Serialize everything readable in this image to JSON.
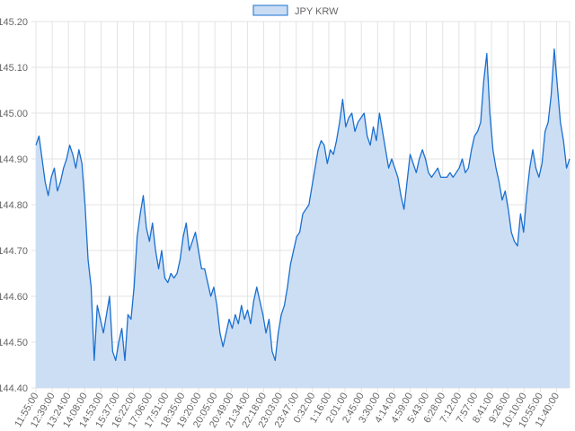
{
  "chart_data": {
    "type": "area",
    "legend": {
      "position": "top",
      "label": "JPY KRW"
    },
    "colors": {
      "line": "#1a6fd0",
      "fill": "#c9dcf3",
      "grid": "#e3e3e3",
      "axis_text": "#666666"
    },
    "grid": true,
    "ylim": [
      144.4,
      145.2
    ],
    "y_ticks": [
      "145.20",
      "145.10",
      "145.00",
      "144.90",
      "144.80",
      "144.70",
      "144.60",
      "144.50",
      "144.40"
    ],
    "x_ticks": [
      "11:55:00",
      "12:39:00",
      "13:24:00",
      "14:08:00",
      "14:53:00",
      "15:37:00",
      "16:22:00",
      "17:06:00",
      "17:51:00",
      "18:35:00",
      "19:20:00",
      "20:05:00",
      "20:49:00",
      "21:34:00",
      "22:18:00",
      "23:03:00",
      "23:47:00",
      "0:32:00",
      "1:16:00",
      "2:01:00",
      "2:45:00",
      "3:30:00",
      "4:14:00",
      "4:59:00",
      "5:43:00",
      "6:28:00",
      "7:12:00",
      "7:57:00",
      "8:41:00",
      "9:26:00",
      "10:10:00",
      "10:55:00",
      "11:40:00"
    ],
    "series": [
      {
        "name": "JPY KRW",
        "values": [
          144.93,
          144.95,
          144.9,
          144.85,
          144.82,
          144.86,
          144.88,
          144.83,
          144.85,
          144.88,
          144.9,
          144.93,
          144.91,
          144.88,
          144.92,
          144.89,
          144.8,
          144.68,
          144.62,
          144.46,
          144.58,
          144.55,
          144.52,
          144.56,
          144.6,
          144.48,
          144.46,
          144.5,
          144.53,
          144.46,
          144.56,
          144.55,
          144.62,
          144.73,
          144.78,
          144.82,
          144.75,
          144.72,
          144.76,
          144.7,
          144.66,
          144.7,
          144.64,
          144.63,
          144.65,
          144.64,
          144.65,
          144.68,
          144.73,
          144.76,
          144.7,
          144.72,
          144.74,
          144.7,
          144.66,
          144.66,
          144.63,
          144.6,
          144.62,
          144.58,
          144.52,
          144.49,
          144.52,
          144.55,
          144.53,
          144.56,
          144.54,
          144.58,
          144.55,
          144.57,
          144.54,
          144.59,
          144.62,
          144.59,
          144.56,
          144.52,
          144.55,
          144.48,
          144.46,
          144.52,
          144.56,
          144.58,
          144.62,
          144.67,
          144.7,
          144.73,
          144.74,
          144.78,
          144.79,
          144.8,
          144.84,
          144.88,
          144.92,
          144.94,
          144.93,
          144.89,
          144.92,
          144.91,
          144.94,
          144.98,
          145.03,
          144.97,
          144.99,
          145.0,
          144.96,
          144.98,
          144.99,
          145.0,
          144.95,
          144.93,
          144.97,
          144.94,
          145.0,
          144.96,
          144.92,
          144.88,
          144.9,
          144.88,
          144.86,
          144.82,
          144.79,
          144.85,
          144.91,
          144.89,
          144.87,
          144.9,
          144.92,
          144.9,
          144.87,
          144.86,
          144.87,
          144.88,
          144.86,
          144.86,
          144.86,
          144.87,
          144.86,
          144.87,
          144.88,
          144.9,
          144.87,
          144.88,
          144.92,
          144.95,
          144.96,
          144.98,
          145.07,
          145.13,
          145.0,
          144.92,
          144.88,
          144.85,
          144.81,
          144.83,
          144.79,
          144.74,
          144.72,
          144.71,
          144.78,
          144.74,
          144.82,
          144.88,
          144.92,
          144.88,
          144.86,
          144.89,
          144.96,
          144.98,
          145.04,
          145.14,
          145.06,
          144.98,
          144.94,
          144.88,
          144.9
        ]
      }
    ]
  }
}
